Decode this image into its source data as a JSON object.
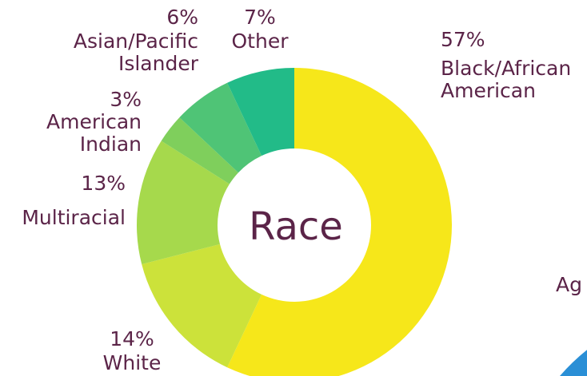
{
  "chart_data": {
    "type": "donut",
    "center_label": "Race",
    "categories": [
      "Black/African American",
      "White",
      "Multiracial",
      "American Indian",
      "Asian/Pacific Islander",
      "Other"
    ],
    "values": [
      57,
      14,
      13,
      3,
      6,
      7
    ],
    "value_labels": [
      "57%",
      "14%",
      "13%",
      "3%",
      "6%",
      "7%"
    ],
    "colors": [
      "#f6e71a",
      "#cce23a",
      "#a6d94c",
      "#7fcf5c",
      "#4fc476",
      "#22bb88"
    ]
  },
  "next_chart_label": "Ag"
}
